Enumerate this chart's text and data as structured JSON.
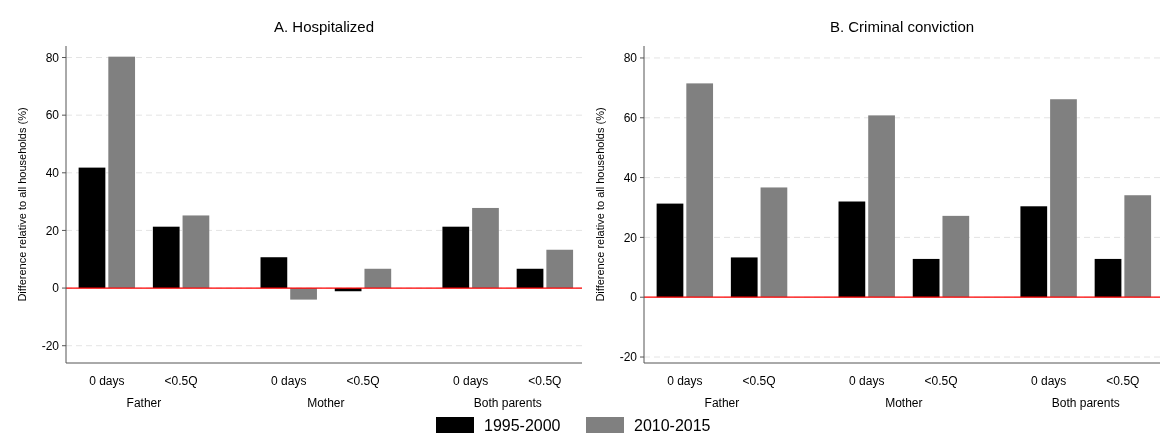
{
  "chart_data": [
    {
      "type": "bar",
      "title": "A. Hospitalized",
      "ylabel": "Difference relative to all households (%)",
      "categories": [
        "0 days",
        "<0.5Q",
        "0 days",
        "<0.5Q",
        "0 days",
        "<0.5Q"
      ],
      "annotations": [
        "Father",
        "Mother",
        "Both parents"
      ],
      "series": [
        {
          "name": "1995-2000",
          "color": "#000000",
          "values": [
            41.8,
            21.3,
            10.7,
            -1.1,
            21.3,
            6.7
          ]
        },
        {
          "name": "2010-2015",
          "color": "#808080",
          "values": [
            80.3,
            25.2,
            -4.0,
            6.7,
            27.8,
            13.3
          ]
        }
      ],
      "ylim": [
        -26,
        84
      ],
      "yticks": [
        -20,
        0,
        20,
        40,
        60,
        80
      ],
      "grid": "y",
      "legend": "bottom",
      "ref_lines": [
        {
          "axis": "y",
          "value": 0,
          "color": "#ff0000"
        }
      ]
    },
    {
      "type": "bar",
      "title": "B. Criminal conviction",
      "ylabel": "Difference relative to all households (%)",
      "categories": [
        "0 days",
        "<0.5Q",
        "0 days",
        "<0.5Q",
        "0 days",
        "<0.5Q"
      ],
      "annotations": [
        "Father",
        "Mother",
        "Both parents"
      ],
      "series": [
        {
          "color": "#000000",
          "values": [
            31.3,
            13.3,
            32.0,
            12.8,
            30.4,
            12.8
          ]
        },
        {
          "color": "#808080",
          "values": [
            71.5,
            36.7,
            60.8,
            27.2,
            66.2,
            34.1
          ]
        }
      ],
      "ylim": [
        -22,
        84
      ],
      "yticks": [
        -20,
        0,
        20,
        40,
        60,
        80
      ],
      "grid": "y",
      "ref_lines": [
        {
          "axis": "y",
          "value": 0,
          "color": "#ff0000"
        }
      ]
    }
  ]
}
